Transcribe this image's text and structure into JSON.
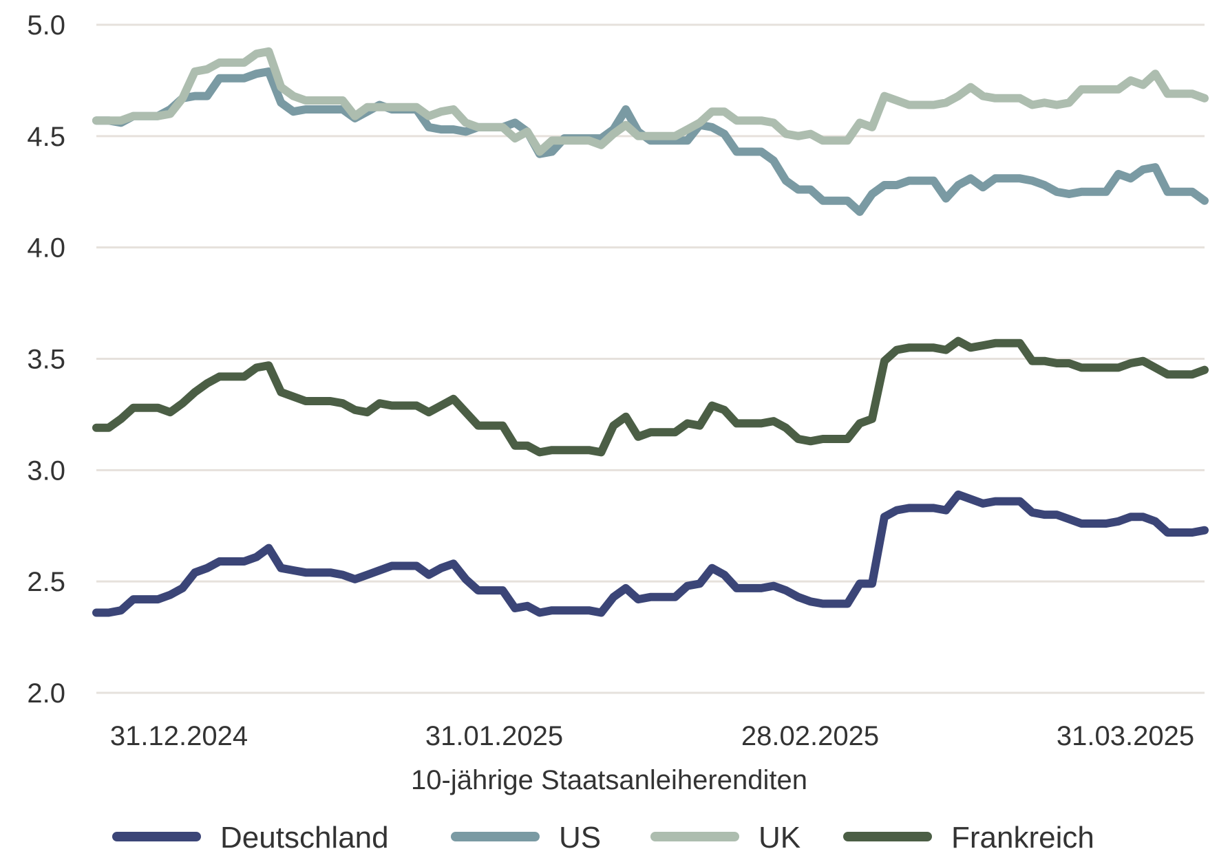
{
  "chart_data": {
    "type": "line",
    "xlabel": "10-jährige Staatsanleiherenditen",
    "ylabel": "",
    "ylim": [
      2.0,
      5.0
    ],
    "yticks": [
      "2.0",
      "2.5",
      "3.0",
      "3.5",
      "4.0",
      "4.5",
      "5.0"
    ],
    "xticks": [
      "31.12.2024",
      "31.01.2025",
      "28.02.2025",
      "31.03.2025"
    ],
    "grid": "horizontal",
    "legend": "bottom",
    "series": [
      {
        "name": "Deutschland",
        "color": "#3b4577",
        "values": [
          2.36,
          2.36,
          2.37,
          2.42,
          2.42,
          2.42,
          2.44,
          2.47,
          2.54,
          2.56,
          2.59,
          2.59,
          2.59,
          2.61,
          2.65,
          2.56,
          2.55,
          2.54,
          2.54,
          2.54,
          2.53,
          2.51,
          2.53,
          2.55,
          2.57,
          2.57,
          2.57,
          2.53,
          2.56,
          2.58,
          2.51,
          2.46,
          2.46,
          2.46,
          2.38,
          2.39,
          2.36,
          2.37,
          2.37,
          2.37,
          2.37,
          2.36,
          2.43,
          2.47,
          2.42,
          2.43,
          2.43,
          2.43,
          2.48,
          2.49,
          2.56,
          2.53,
          2.47,
          2.47,
          2.47,
          2.48,
          2.46,
          2.43,
          2.41,
          2.4,
          2.4,
          2.4,
          2.49,
          2.49,
          2.79,
          2.82,
          2.83,
          2.83,
          2.83,
          2.82,
          2.89,
          2.87,
          2.85,
          2.86,
          2.86,
          2.86,
          2.81,
          2.8,
          2.8,
          2.78,
          2.76,
          2.76,
          2.76,
          2.77,
          2.79,
          2.79,
          2.77,
          2.72,
          2.72,
          2.72,
          2.73
        ]
      },
      {
        "name": "US",
        "color": "#7a9aa3",
        "values": [
          4.57,
          4.57,
          4.56,
          4.59,
          4.59,
          4.59,
          4.62,
          4.67,
          4.68,
          4.68,
          4.76,
          4.76,
          4.76,
          4.78,
          4.79,
          4.65,
          4.61,
          4.62,
          4.62,
          4.62,
          4.62,
          4.58,
          4.61,
          4.64,
          4.62,
          4.62,
          4.62,
          4.54,
          4.53,
          4.53,
          4.52,
          4.54,
          4.54,
          4.54,
          4.56,
          4.52,
          4.42,
          4.43,
          4.49,
          4.49,
          4.49,
          4.49,
          4.53,
          4.62,
          4.52,
          4.48,
          4.48,
          4.48,
          4.48,
          4.55,
          4.54,
          4.51,
          4.43,
          4.43,
          4.43,
          4.39,
          4.3,
          4.26,
          4.26,
          4.21,
          4.21,
          4.21,
          4.16,
          4.24,
          4.28,
          4.28,
          4.3,
          4.3,
          4.3,
          4.22,
          4.28,
          4.31,
          4.27,
          4.31,
          4.31,
          4.31,
          4.3,
          4.28,
          4.25,
          4.24,
          4.25,
          4.25,
          4.25,
          4.33,
          4.31,
          4.35,
          4.36,
          4.25,
          4.25,
          4.25,
          4.21
        ]
      },
      {
        "name": "UK",
        "color": "#adbdaf",
        "values": [
          4.57,
          4.57,
          4.57,
          4.59,
          4.59,
          4.59,
          4.6,
          4.67,
          4.79,
          4.8,
          4.83,
          4.83,
          4.83,
          4.87,
          4.88,
          4.72,
          4.68,
          4.66,
          4.66,
          4.66,
          4.66,
          4.59,
          4.63,
          4.63,
          4.63,
          4.63,
          4.63,
          4.59,
          4.61,
          4.62,
          4.56,
          4.54,
          4.54,
          4.54,
          4.49,
          4.52,
          4.43,
          4.48,
          4.48,
          4.48,
          4.48,
          4.46,
          4.51,
          4.55,
          4.5,
          4.5,
          4.5,
          4.5,
          4.53,
          4.56,
          4.61,
          4.61,
          4.57,
          4.57,
          4.57,
          4.56,
          4.51,
          4.5,
          4.51,
          4.48,
          4.48,
          4.48,
          4.56,
          4.54,
          4.68,
          4.66,
          4.64,
          4.64,
          4.64,
          4.65,
          4.68,
          4.72,
          4.68,
          4.67,
          4.67,
          4.67,
          4.64,
          4.65,
          4.64,
          4.65,
          4.71,
          4.71,
          4.71,
          4.71,
          4.75,
          4.73,
          4.78,
          4.69,
          4.69,
          4.69,
          4.67
        ]
      },
      {
        "name": "Frankreich",
        "color": "#4b5e45",
        "values": [
          3.19,
          3.19,
          3.23,
          3.28,
          3.28,
          3.28,
          3.26,
          3.3,
          3.35,
          3.39,
          3.42,
          3.42,
          3.42,
          3.46,
          3.47,
          3.35,
          3.33,
          3.31,
          3.31,
          3.31,
          3.3,
          3.27,
          3.26,
          3.3,
          3.29,
          3.29,
          3.29,
          3.26,
          3.29,
          3.32,
          3.26,
          3.2,
          3.2,
          3.2,
          3.11,
          3.11,
          3.08,
          3.09,
          3.09,
          3.09,
          3.09,
          3.08,
          3.2,
          3.24,
          3.15,
          3.17,
          3.17,
          3.17,
          3.21,
          3.2,
          3.29,
          3.27,
          3.21,
          3.21,
          3.21,
          3.22,
          3.19,
          3.14,
          3.13,
          3.14,
          3.14,
          3.14,
          3.21,
          3.23,
          3.49,
          3.54,
          3.55,
          3.55,
          3.55,
          3.54,
          3.58,
          3.55,
          3.56,
          3.57,
          3.57,
          3.57,
          3.49,
          3.49,
          3.48,
          3.48,
          3.46,
          3.46,
          3.46,
          3.46,
          3.48,
          3.49,
          3.46,
          3.43,
          3.43,
          3.43,
          3.45
        ]
      }
    ]
  }
}
